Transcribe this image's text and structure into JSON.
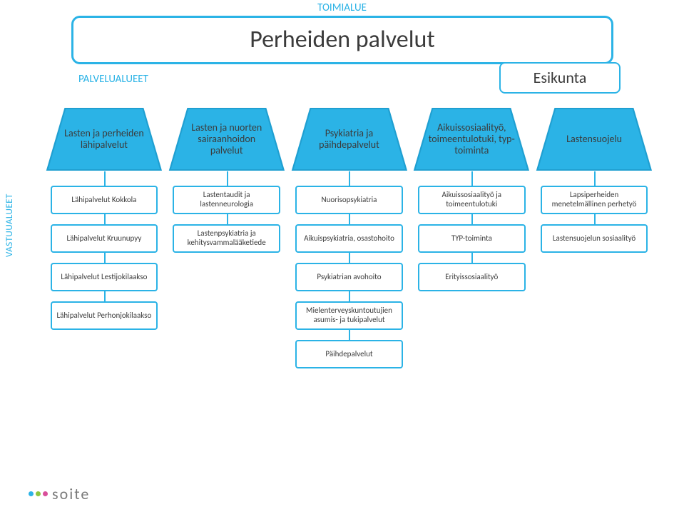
{
  "colors": {
    "accent": "#2bb3e6",
    "accent_dark": "#1f9fd1",
    "text_accent": "#2bb3e6",
    "text_dark": "#3b3b3b",
    "white": "#ffffff",
    "logo_dot1": "#2bb3e6",
    "logo_dot2": "#8cc63f",
    "logo_dot3": "#d94f9a",
    "logo_text": "#7a7a7a"
  },
  "labels": {
    "toimialue": "TOIMIALUE",
    "main_title": "Perheiden palvelut",
    "palvelualueet": "PALVELUALUEET",
    "esikunta": "Esikunta",
    "vastuualueet": "VASTUUALUEET"
  },
  "service_areas": [
    {
      "label": "Lasten ja perheiden lähipalvelut"
    },
    {
      "label": "Lasten ja nuorten sairaanhoidon palvelut"
    },
    {
      "label": "Psykiatria ja päihdepalvelut"
    },
    {
      "label": "Aikuis­sosiaalityö, toimeentulo­tuki, typ­toiminta"
    },
    {
      "label": "Lastensuojelu"
    }
  ],
  "columns": [
    {
      "items": [
        "Lähipalvelut Kokkola",
        "Lähipalvelut Kruunupyy",
        "Lähipalvelut Lestijokilaakso",
        "Lähipalvelut Perhonjokilaakso"
      ]
    },
    {
      "items": [
        "Lastentaudit ja lastenneurologia",
        "Lastenpsykiatria ja kehitysvamma­lääketiede"
      ]
    },
    {
      "items": [
        "Nuorisopsykiatria",
        "Aikuispsykiatria, osastohoito",
        "Psykiatrian avohoito",
        "Mielenterveys­kuntoutujien asumis- ja tukipalvelut",
        "Päihdepalvelut"
      ]
    },
    {
      "items": [
        "Aikuissosiaalityö ja toimeentulotuki",
        "TYP-toiminta",
        "Erityissosiaalityö"
      ]
    },
    {
      "items": [
        "Lapsiperheiden menetelmällinen perhetyö",
        "Lastensuojelun sosiaalityö"
      ]
    }
  ],
  "logo": {
    "text": "soite"
  }
}
